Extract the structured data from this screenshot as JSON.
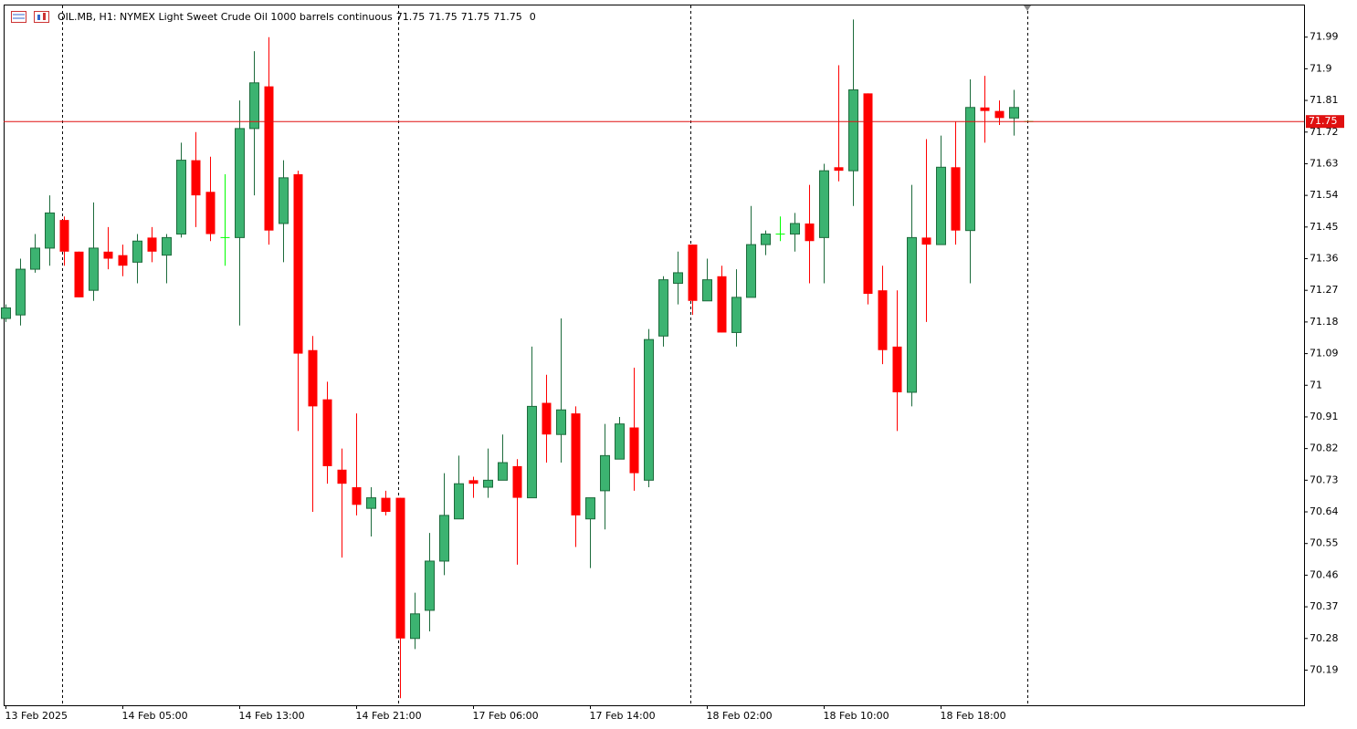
{
  "chart_data": {
    "type": "candlestick",
    "title": "OIL.MB, H1:  NYMEX Light Sweet Crude Oil 1000 barrels continuous",
    "last": {
      "open": 71.75,
      "high": 71.75,
      "low": 71.75,
      "close": 71.75,
      "volume": 0
    },
    "categories": [
      "13 Feb 2025",
      null,
      null,
      null,
      null,
      null,
      null,
      null,
      "14 Feb 05:00",
      null,
      null,
      null,
      null,
      null,
      null,
      null,
      "14 Feb 13:00",
      null,
      null,
      null,
      null,
      null,
      null,
      null,
      "14 Feb 21:00",
      null,
      null,
      null,
      null,
      null,
      null,
      null,
      "17 Feb 06:00",
      null,
      null,
      null,
      null,
      null,
      null,
      null,
      "17 Feb 14:00",
      null,
      null,
      null,
      null,
      null,
      null,
      null,
      "18 Feb 02:00",
      null,
      null,
      null,
      null,
      null,
      null,
      null,
      "18 Feb 10:00",
      null,
      null,
      null,
      null,
      null,
      null,
      null,
      "18 Feb 18:00",
      null,
      null,
      null,
      null,
      null,
      null
    ],
    "open": [
      71.19,
      71.2,
      71.33,
      71.39,
      71.47,
      71.38,
      71.27,
      71.38,
      71.37,
      71.35,
      71.42,
      71.37,
      71.43,
      71.64,
      71.55,
      71.42,
      71.42,
      71.73,
      71.85,
      71.46,
      71.6,
      71.1,
      70.96,
      70.76,
      70.71,
      70.65,
      70.68,
      70.68,
      70.28,
      70.36,
      70.5,
      70.62,
      70.73,
      70.71,
      70.73,
      70.77,
      70.68,
      70.95,
      70.86,
      70.92,
      70.62,
      70.7,
      70.79,
      70.88,
      70.73,
      71.14,
      71.29,
      71.4,
      71.24,
      71.31,
      71.15,
      71.25,
      71.4,
      71.43,
      71.43,
      71.46,
      71.42,
      71.62,
      71.61,
      71.83,
      71.27,
      71.11,
      70.98,
      71.42,
      71.4,
      71.62,
      71.44,
      71.79,
      71.78,
      71.76,
      71.75
    ],
    "high": [
      71.23,
      71.36,
      71.43,
      71.54,
      71.48,
      71.38,
      71.52,
      71.45,
      71.4,
      71.43,
      71.45,
      71.43,
      71.69,
      71.72,
      71.65,
      71.6,
      71.81,
      71.95,
      71.99,
      71.64,
      71.61,
      71.14,
      71.01,
      70.82,
      70.92,
      70.71,
      70.7,
      70.68,
      70.41,
      70.58,
      70.75,
      70.8,
      70.74,
      70.82,
      70.86,
      70.79,
      71.11,
      71.03,
      71.19,
      70.94,
      70.68,
      70.89,
      70.91,
      71.05,
      71.16,
      71.31,
      71.38,
      71.4,
      71.36,
      71.34,
      71.33,
      71.51,
      71.44,
      71.48,
      71.49,
      71.57,
      71.63,
      71.91,
      72.04,
      71.83,
      71.34,
      71.27,
      71.57,
      71.7,
      71.71,
      71.75,
      71.87,
      71.88,
      71.81,
      71.84,
      71.75
    ],
    "low": [
      71.18,
      71.17,
      71.32,
      71.34,
      71.34,
      71.25,
      71.24,
      71.33,
      71.31,
      71.29,
      71.35,
      71.29,
      71.42,
      71.45,
      71.41,
      71.34,
      71.17,
      71.54,
      71.4,
      71.35,
      70.87,
      70.64,
      70.72,
      70.51,
      70.63,
      70.57,
      70.63,
      70.11,
      70.25,
      70.3,
      70.46,
      70.62,
      70.68,
      70.68,
      70.73,
      70.49,
      70.68,
      70.78,
      70.78,
      70.54,
      70.48,
      70.59,
      70.79,
      70.7,
      70.71,
      71.11,
      71.23,
      71.2,
      71.24,
      71.15,
      71.11,
      71.25,
      71.37,
      71.41,
      71.38,
      71.29,
      71.29,
      71.58,
      71.51,
      71.23,
      71.06,
      70.87,
      70.94,
      71.18,
      71.4,
      71.4,
      71.29,
      71.69,
      71.74,
      71.71,
      71.75
    ],
    "close": [
      71.22,
      71.33,
      71.39,
      71.49,
      71.38,
      71.25,
      71.39,
      71.36,
      71.34,
      71.41,
      71.38,
      71.42,
      71.64,
      71.54,
      71.43,
      71.42,
      71.73,
      71.86,
      71.44,
      71.59,
      71.09,
      70.94,
      70.77,
      70.72,
      70.66,
      70.68,
      70.64,
      70.28,
      70.35,
      70.5,
      70.63,
      70.72,
      70.72,
      70.73,
      70.78,
      70.68,
      70.94,
      70.86,
      70.93,
      70.63,
      70.68,
      70.8,
      70.89,
      70.75,
      71.13,
      71.3,
      71.32,
      71.24,
      71.3,
      71.15,
      71.25,
      71.4,
      71.43,
      71.43,
      71.46,
      71.41,
      71.61,
      71.61,
      71.84,
      71.26,
      71.1,
      70.98,
      71.42,
      71.4,
      71.62,
      71.44,
      71.79,
      71.78,
      71.76,
      71.79,
      71.75
    ],
    "up_color": "#3cb371",
    "down_color": "#ff0000",
    "doji_color": "#00ff00",
    "price_line": 71.75,
    "price_line_color": "#e01010",
    "ylim": [
      70.09,
      72.08
    ],
    "yticks": [
      70.19,
      70.28,
      70.37,
      70.46,
      70.55,
      70.64,
      70.73,
      70.82,
      70.91,
      71.0,
      71.09,
      71.18,
      71.27,
      71.36,
      71.45,
      71.54,
      71.63,
      71.72,
      71.81,
      71.9,
      71.99
    ],
    "grid": false
  }
}
